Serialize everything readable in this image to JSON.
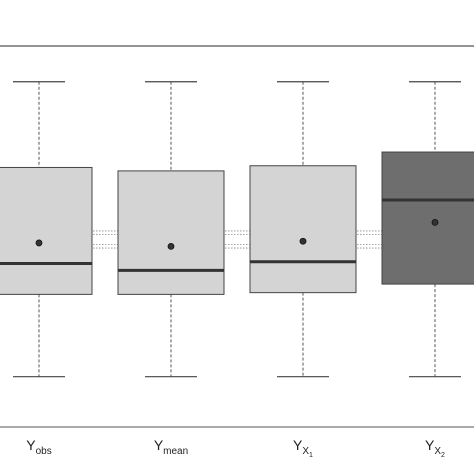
{
  "chart_data": {
    "type": "boxplot",
    "title": "",
    "xlabel": "",
    "ylabel": "",
    "ylim": [
      0,
      100
    ],
    "grid": false,
    "legend": "none",
    "series": [
      {
        "label": {
          "main": "Y",
          "sub": "obs",
          "subsub": ""
        },
        "whisker_low": 10,
        "q1": 34,
        "median": 43,
        "q3": 71,
        "whisker_high": 96,
        "mean": 49,
        "color": "#d4d4d4"
      },
      {
        "label": {
          "main": "Y",
          "sub": "mean",
          "subsub": ""
        },
        "whisker_low": 10,
        "q1": 34,
        "median": 41,
        "q3": 70,
        "whisker_high": 96,
        "mean": 48,
        "color": "#d4d4d4"
      },
      {
        "label": {
          "main": "Y",
          "sub": "X",
          "subsub": "1"
        },
        "whisker_low": 10,
        "q1": 34.5,
        "median": 43.5,
        "q3": 71.5,
        "whisker_high": 96,
        "mean": 49.5,
        "color": "#d4d4d4"
      },
      {
        "label": {
          "main": "Y",
          "sub": "X",
          "subsub": "2"
        },
        "whisker_low": 10,
        "q1": 37,
        "median": 61.5,
        "q3": 75.5,
        "whisker_high": 96,
        "mean": 55,
        "color": "#6e6e6e"
      }
    ],
    "reference_lines": [
      52.5,
      51.5,
      48.5,
      47.5
    ]
  },
  "colors": {
    "axis": "#555555",
    "box_edge": "#444444",
    "median": "#333333",
    "whisker": "#444444",
    "ref_line": "#888888"
  }
}
